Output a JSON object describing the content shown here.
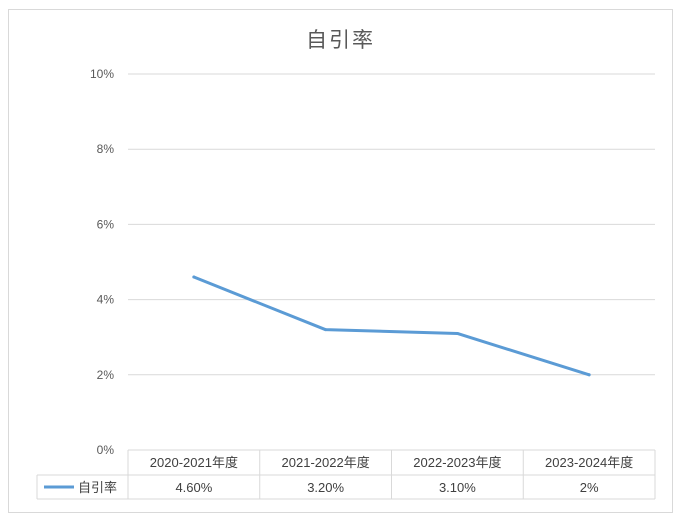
{
  "chart_data": {
    "type": "line",
    "title": "自引率",
    "categories": [
      "2020-2021年度",
      "2021-2022年度",
      "2022-2023年度",
      "2023-2024年度"
    ],
    "series": [
      {
        "name": "自引率",
        "values": [
          4.6,
          3.2,
          3.1,
          2.0
        ],
        "labels": [
          "4.60%",
          "3.20%",
          "3.10%",
          "2%"
        ],
        "color": "#5b9bd5"
      }
    ],
    "ylim": [
      0,
      10
    ],
    "yticks": [
      "0%",
      "2%",
      "4%",
      "6%",
      "8%",
      "10%"
    ],
    "ytick_values": [
      0,
      2,
      4,
      6,
      8,
      10
    ],
    "grid": true,
    "legend": "data-table",
    "xlabel": "",
    "ylabel": ""
  }
}
